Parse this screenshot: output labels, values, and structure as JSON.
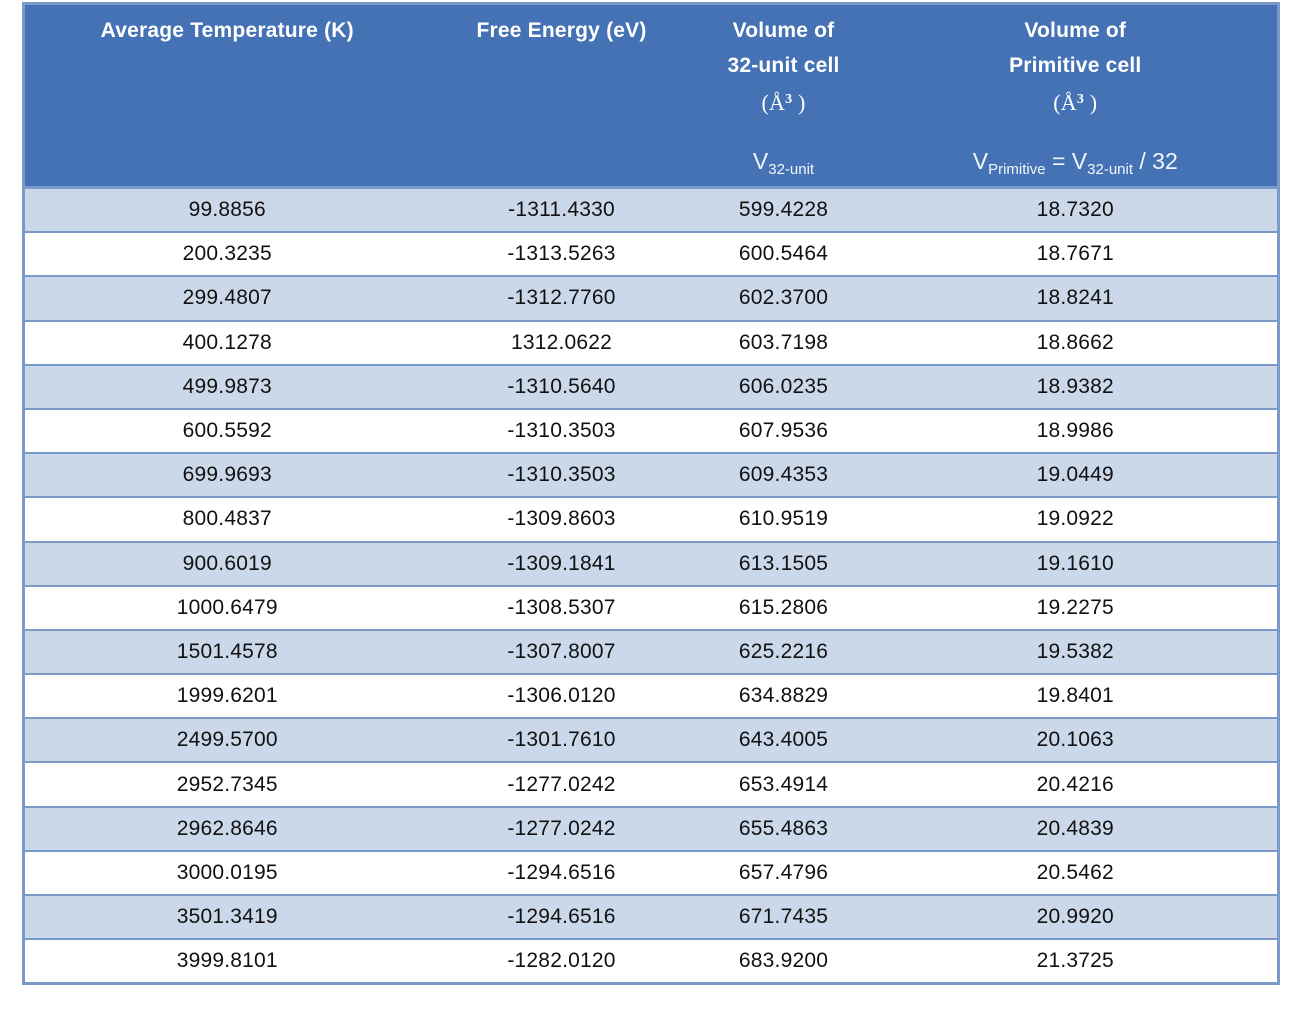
{
  "style": {
    "header_bg": "#4472B4",
    "band_row_bg": "#CBD8EA",
    "plain_row_bg": "#FFFFFF",
    "border_color": "#7B99C9",
    "header_text_color": "#FFFFFF",
    "cell_text_color": "#111111"
  },
  "chart_data": {
    "type": "table",
    "title": "",
    "layout_hints": {
      "banded_rows": true,
      "horizontal_borders_only": true,
      "all_cells_centered": true
    },
    "columns": [
      {
        "id": "average-temperature",
        "plain_label": "Average Temperature (K)",
        "lines": [
          {
            "segs": [
              {
                "t": "Average Temperature (K)"
              }
            ]
          }
        ],
        "sub": null
      },
      {
        "id": "free-energy",
        "plain_label": "Free Energy (eV)",
        "lines": [
          {
            "segs": [
              {
                "t": "Free Energy (eV)"
              }
            ]
          }
        ],
        "sub": null
      },
      {
        "id": "volume-32-unit-cell",
        "plain_label": "Volume of 32-unit cell (Å³)",
        "lines": [
          {
            "segs": [
              {
                "t": "Volume of"
              }
            ]
          },
          {
            "segs": [
              {
                "t": "32-unit cell"
              }
            ]
          },
          {
            "math": true,
            "segs": [
              {
                "t": "(Å"
              },
              {
                "t": "3",
                "sup": true
              },
              {
                "t": " )"
              }
            ]
          }
        ],
        "sub": {
          "plain_label": "V32-unit",
          "segs": [
            {
              "t": "V"
            },
            {
              "t": "32-unit",
              "sub": true
            }
          ]
        }
      },
      {
        "id": "volume-primitive-cell",
        "plain_label": "Volume of Primitive cell (Å³)",
        "lines": [
          {
            "segs": [
              {
                "t": "Volume of"
              }
            ]
          },
          {
            "segs": [
              {
                "t": "Primitive cell"
              }
            ]
          },
          {
            "math": true,
            "segs": [
              {
                "t": "(Å"
              },
              {
                "t": "3",
                "sup": true
              },
              {
                "t": " )"
              }
            ]
          }
        ],
        "sub": {
          "plain_label": "VPrimitive = V32-unit / 32",
          "segs": [
            {
              "t": "V"
            },
            {
              "t": "Primitive",
              "sub": true
            },
            {
              "t": " = V"
            },
            {
              "t": "32-unit",
              "sub": true
            },
            {
              "t": " / 32"
            }
          ]
        }
      }
    ],
    "rows": [
      [
        "99.8856",
        "-1311.4330",
        "599.4228",
        "18.7320"
      ],
      [
        "200.3235",
        "-1313.5263",
        "600.5464",
        "18.7671"
      ],
      [
        "299.4807",
        "-1312.7760",
        "602.3700",
        "18.8241"
      ],
      [
        "400.1278",
        "1312.0622",
        "603.7198",
        "18.8662"
      ],
      [
        "499.9873",
        "-1310.5640",
        "606.0235",
        "18.9382"
      ],
      [
        "600.5592",
        "-1310.3503",
        "607.9536",
        "18.9986"
      ],
      [
        "699.9693",
        "-1310.3503",
        "609.4353",
        "19.0449"
      ],
      [
        "800.4837",
        "-1309.8603",
        "610.9519",
        "19.0922"
      ],
      [
        "900.6019",
        "-1309.1841",
        "613.1505",
        "19.1610"
      ],
      [
        "1000.6479",
        "-1308.5307",
        "615.2806",
        "19.2275"
      ],
      [
        "1501.4578",
        "-1307.8007",
        "625.2216",
        "19.5382"
      ],
      [
        "1999.6201",
        "-1306.0120",
        "634.8829",
        "19.8401"
      ],
      [
        "2499.5700",
        "-1301.7610",
        "643.4005",
        "20.1063"
      ],
      [
        "2952.7345",
        "-1277.0242",
        "653.4914",
        "20.4216"
      ],
      [
        "2962.8646",
        "-1277.0242",
        "655.4863",
        "20.4839"
      ],
      [
        "3000.0195",
        "-1294.6516",
        "657.4796",
        "20.5462"
      ],
      [
        "3501.3419",
        "-1294.6516",
        "671.7435",
        "20.9920"
      ],
      [
        "3999.8101",
        "-1282.0120",
        "683.9200",
        "21.3725"
      ]
    ]
  }
}
